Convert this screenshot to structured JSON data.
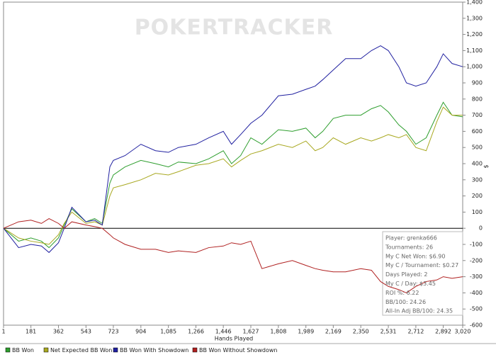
{
  "chart_data": {
    "type": "line",
    "watermark": "POKERTRACKER",
    "xlabel": "Hands Played",
    "ylabel": "$",
    "x": [
      1,
      100,
      181,
      250,
      300,
      362,
      400,
      450,
      543,
      600,
      650,
      700,
      723,
      800,
      904,
      1000,
      1085,
      1150,
      1266,
      1350,
      1446,
      1500,
      1560,
      1627,
      1700,
      1808,
      1900,
      1989,
      2050,
      2100,
      2169,
      2250,
      2350,
      2420,
      2480,
      2531,
      2600,
      2650,
      2712,
      2780,
      2850,
      2892,
      2950,
      3020
    ],
    "series": [
      {
        "name": "BB Won",
        "color": "#2e9e2e",
        "values": [
          0,
          -80,
          -60,
          -80,
          -120,
          -60,
          20,
          120,
          40,
          60,
          30,
          280,
          330,
          380,
          420,
          400,
          380,
          410,
          400,
          430,
          480,
          400,
          450,
          560,
          520,
          610,
          600,
          620,
          560,
          600,
          680,
          700,
          700,
          740,
          760,
          720,
          640,
          600,
          520,
          560,
          700,
          780,
          700,
          690
        ]
      },
      {
        "name": "Net Expected BB Won",
        "color": "#a8a820",
        "values": [
          0,
          -60,
          -80,
          -90,
          -100,
          -40,
          30,
          100,
          30,
          40,
          20,
          200,
          250,
          270,
          300,
          340,
          330,
          350,
          390,
          400,
          430,
          380,
          420,
          460,
          480,
          520,
          500,
          540,
          480,
          500,
          560,
          520,
          560,
          540,
          560,
          580,
          560,
          580,
          500,
          480,
          660,
          750,
          700,
          700
        ]
      },
      {
        "name": "BB Won With Showdown",
        "color": "#2020a0",
        "values": [
          0,
          -120,
          -100,
          -110,
          -150,
          -90,
          0,
          130,
          40,
          50,
          20,
          380,
          420,
          450,
          520,
          480,
          470,
          500,
          520,
          560,
          600,
          520,
          580,
          650,
          700,
          820,
          830,
          860,
          880,
          920,
          980,
          1050,
          1050,
          1100,
          1130,
          1100,
          1000,
          900,
          880,
          900,
          1000,
          1080,
          1020,
          1000
        ]
      },
      {
        "name": "BB Won Without Showdown",
        "color": "#b02020",
        "values": [
          0,
          40,
          50,
          30,
          60,
          30,
          0,
          40,
          20,
          10,
          0,
          -40,
          -60,
          -100,
          -130,
          -130,
          -150,
          -140,
          -150,
          -120,
          -110,
          -90,
          -100,
          -80,
          -250,
          -220,
          -200,
          -230,
          -250,
          -260,
          -270,
          -270,
          -250,
          -260,
          -330,
          -360,
          -380,
          -400,
          -360,
          -330,
          -320,
          -300,
          -310,
          -300
        ]
      }
    ],
    "xlim": [
      1,
      3020
    ],
    "xticks": [
      1,
      181,
      362,
      543,
      723,
      904,
      {
        "value": 1085,
        "label": "1,085"
      },
      {
        "value": 1266,
        "label": "1,266"
      },
      {
        "value": 1446,
        "label": "1,446"
      },
      {
        "value": 1627,
        "label": "1,627"
      },
      {
        "value": 1808,
        "label": "1,808"
      },
      {
        "value": 1989,
        "label": "1,989"
      },
      {
        "value": 2169,
        "label": "2,169"
      },
      {
        "value": 2350,
        "label": "2,350"
      },
      {
        "value": 2531,
        "label": "2,531"
      },
      {
        "value": 2712,
        "label": "2,712"
      },
      {
        "value": 2892,
        "label": "2,892"
      },
      {
        "value": 3020,
        "label": "3,020"
      }
    ],
    "ylim": [
      -600,
      1400
    ],
    "yticks": [
      -600,
      -500,
      -400,
      -300,
      -200,
      -100,
      0,
      100,
      200,
      300,
      400,
      500,
      600,
      700,
      800,
      900,
      {
        "value": 1000,
        "label": "1,000"
      },
      {
        "value": 1100,
        "label": "1,100"
      },
      {
        "value": 1200,
        "label": "1,200"
      },
      {
        "value": 1300,
        "label": "1,300"
      },
      {
        "value": 1400,
        "label": "1,400"
      }
    ],
    "stats": [
      "Player: grenka666",
      "Tournaments: 26",
      "My C Net Won: $6.90",
      "My C / Tournament: $0.27",
      "Days Played: 2",
      "My C / Day: $3.45",
      "ROI %: 6.22",
      "BB/100: 24.26",
      "All-In Adj BB/100: 24.35"
    ]
  }
}
